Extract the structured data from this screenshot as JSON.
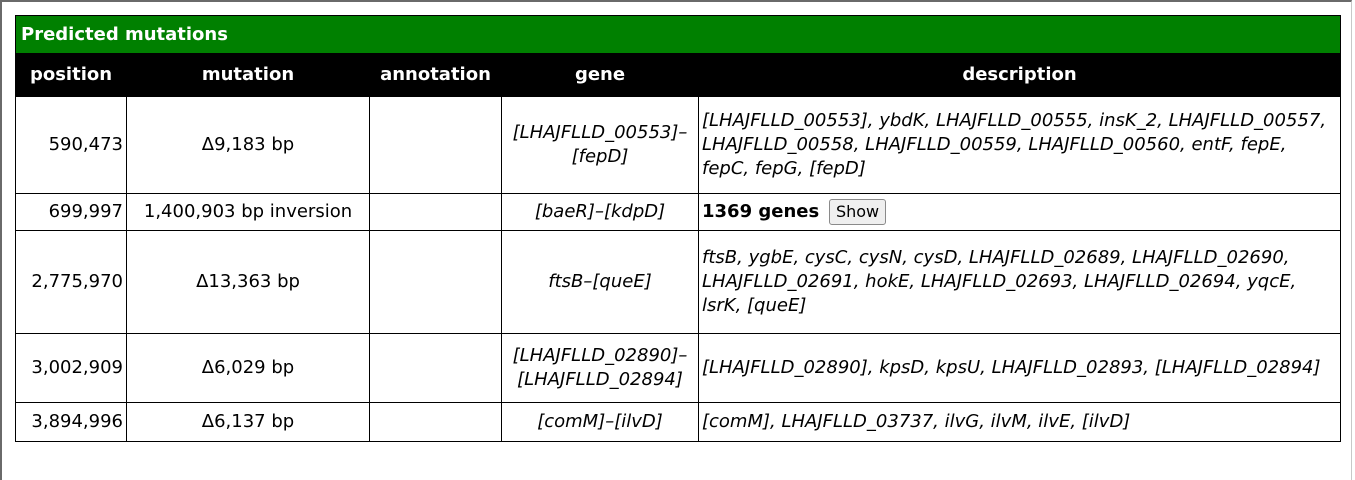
{
  "table": {
    "title": "Predicted mutations",
    "headers": {
      "position": "position",
      "mutation": "mutation",
      "annotation": "annotation",
      "gene": "gene",
      "description": "description"
    },
    "rows": [
      {
        "position": "590,473",
        "mutation": "Δ9,183 bp",
        "annotation": "",
        "gene": "[LHAJFLLD_00553]–[fepD]",
        "description": "[LHAJFLLD_00553], ybdK, LHAJFLLD_00555, insK_2, LHAJFLLD_00557, LHAJFLLD_00558, LHAJFLLD_00559, LHAJFLLD_00560, entF, fepE, fepC, fepG, [fepD]"
      },
      {
        "position": "699,997",
        "mutation": "1,400,903 bp inversion",
        "annotation": "",
        "gene": "[baeR]–[kdpD]",
        "gene_count": "1369 genes",
        "show_label": "Show"
      },
      {
        "position": "2,775,970",
        "mutation": "Δ13,363 bp",
        "annotation": "",
        "gene": "ftsB–[queE]",
        "description": "ftsB, ygbE, cysC, cysN, cysD, LHAJFLLD_02689, LHAJFLLD_02690, LHAJFLLD_02691, hokE, LHAJFLLD_02693, LHAJFLLD_02694, yqcE, lsrK, [queE]"
      },
      {
        "position": "3,002,909",
        "mutation": "Δ6,029 bp",
        "annotation": "",
        "gene": "[LHAJFLLD_02890]–[LHAJFLLD_02894]",
        "description": "[LHAJFLLD_02890], kpsD, kpsU, LHAJFLLD_02893, [LHAJFLLD_02894]"
      },
      {
        "position": "3,894,996",
        "mutation": "Δ6,137 bp",
        "annotation": "",
        "gene": "[comM]–[ilvD]",
        "description": "[comM], LHAJFLLD_03737, ilvG, ilvM, ilvE, [ilvD]"
      }
    ]
  },
  "colors": {
    "title_bg": "#008000",
    "header_bg": "#000000"
  }
}
